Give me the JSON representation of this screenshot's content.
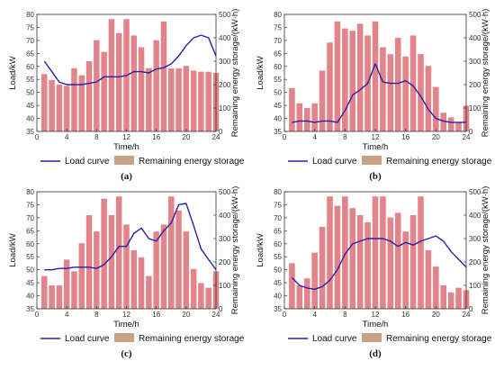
{
  "colors": {
    "bar_fill": "#e07a7f",
    "bar_fill_alt": "#c8a48c",
    "legend_bar": "#c9a185",
    "line": "#2a1fa8",
    "axis": "#333333"
  },
  "legend": {
    "line_label": "Load curve",
    "bar_label": "Remaining energy storage"
  },
  "chart_data": [
    {
      "type": "bar+line",
      "panel_label": "(a)",
      "xlabel": "Time/h",
      "ylabel": "Load/kW",
      "y2label": "Remaining energy storage/(kW·h)",
      "xlim": [
        0,
        24
      ],
      "ylim": [
        35,
        80
      ],
      "y2lim": [
        0,
        500
      ],
      "xticks": [
        "0",
        "4",
        "8",
        "12",
        "16",
        "20",
        "24"
      ],
      "yticks": [
        "35",
        "40",
        "45",
        "50",
        "55",
        "60",
        "65",
        "70",
        "75",
        "80"
      ],
      "y2ticks": [
        "0",
        "100",
        "200",
        "300",
        "400",
        "500"
      ],
      "hours": [
        1,
        2,
        3,
        4,
        5,
        6,
        7,
        8,
        9,
        10,
        11,
        12,
        13,
        14,
        15,
        16,
        17,
        18,
        19,
        20,
        21,
        22,
        23,
        24
      ],
      "bar_series": {
        "name": "Remaining energy storage",
        "values": [
          245,
          220,
          200,
          195,
          270,
          240,
          300,
          390,
          340,
          480,
          420,
          480,
          410,
          360,
          270,
          390,
          470,
          270,
          270,
          280,
          260,
          255,
          255,
          250
        ]
      },
      "line_series": {
        "name": "Load curve",
        "x": [
          1,
          2,
          3,
          4,
          5,
          6,
          7,
          8,
          9,
          10,
          11,
          12,
          13,
          14,
          15,
          16,
          17,
          18,
          19,
          20,
          21,
          22,
          23,
          24
        ],
        "values": [
          62,
          58,
          54,
          53,
          53,
          53,
          53.5,
          54,
          56,
          56,
          56,
          56.5,
          58,
          58,
          57.5,
          59,
          59.5,
          61,
          64,
          68,
          71,
          72,
          71,
          64
        ]
      }
    },
    {
      "type": "bar+line",
      "panel_label": "(b)",
      "xlabel": "Time/h",
      "ylabel": "Load/kW",
      "y2label": "Remaining energy storage/(kW·h)",
      "xlim": [
        0,
        24
      ],
      "ylim": [
        35,
        80
      ],
      "y2lim": [
        0,
        500
      ],
      "xticks": [
        "0",
        "4",
        "8",
        "12",
        "16",
        "20",
        "24"
      ],
      "yticks": [
        "35",
        "40",
        "45",
        "50",
        "55",
        "60",
        "65",
        "70",
        "75",
        "80"
      ],
      "y2ticks": [
        "0",
        "100",
        "200",
        "300",
        "400",
        "500"
      ],
      "hours": [
        1,
        2,
        3,
        4,
        5,
        6,
        7,
        8,
        9,
        10,
        11,
        12,
        13,
        14,
        15,
        16,
        17,
        18,
        19,
        20,
        21,
        22,
        23,
        24
      ],
      "bar_series": {
        "name": "Remaining energy storage",
        "values": [
          185,
          120,
          100,
          120,
          260,
          380,
          470,
          440,
          430,
          460,
          410,
          470,
          360,
          330,
          400,
          320,
          410,
          330,
          280,
          190,
          80,
          60,
          40,
          110
        ]
      },
      "line_series": {
        "name": "Load curve",
        "x": [
          1,
          2,
          3,
          4,
          5,
          6,
          7,
          8,
          9,
          10,
          11,
          12,
          13,
          14,
          15,
          16,
          17,
          18,
          19,
          20,
          21,
          22,
          23,
          24
        ],
        "values": [
          38.5,
          39,
          39,
          38.5,
          39,
          39,
          38.5,
          43,
          49,
          51,
          53.5,
          61,
          54,
          53.5,
          53.5,
          54.5,
          52.5,
          48.5,
          43.5,
          40,
          39,
          38.5,
          38.5,
          38.5
        ]
      }
    },
    {
      "type": "bar+line",
      "panel_label": "(c)",
      "xlabel": "Time/h",
      "ylabel": "Load/kW",
      "y2label": "Remaining energy storage/(kW·h)",
      "xlim": [
        0,
        24
      ],
      "ylim": [
        35,
        80
      ],
      "y2lim": [
        0,
        500
      ],
      "xticks": [
        "0",
        "4",
        "8",
        "12",
        "16",
        "20",
        "24"
      ],
      "yticks": [
        "35",
        "40",
        "45",
        "50",
        "55",
        "60",
        "65",
        "70",
        "75",
        "80"
      ],
      "y2ticks": [
        "0",
        "100",
        "200",
        "300",
        "400",
        "500"
      ],
      "hours": [
        1,
        2,
        3,
        4,
        5,
        6,
        7,
        8,
        9,
        10,
        11,
        12,
        13,
        14,
        15,
        16,
        17,
        18,
        19,
        20,
        21,
        22,
        23,
        24
      ],
      "bar_series": {
        "name": "Remaining energy storage",
        "values": [
          140,
          100,
          100,
          210,
          160,
          280,
          400,
          330,
          470,
          400,
          480,
          360,
          250,
          220,
          140,
          330,
          360,
          480,
          420,
          330,
          170,
          110,
          90,
          160
        ]
      },
      "line_series": {
        "name": "Load curve",
        "x": [
          1,
          2,
          3,
          4,
          5,
          6,
          7,
          8,
          9,
          10,
          11,
          12,
          13,
          14,
          15,
          16,
          17,
          18,
          19,
          20,
          21,
          22,
          23,
          24
        ],
        "values": [
          50,
          50,
          50.5,
          50.5,
          51,
          51,
          51,
          50.5,
          52,
          55,
          59,
          59,
          64,
          66,
          62,
          61,
          65,
          68,
          75,
          75.5,
          67,
          58,
          54,
          50
        ]
      }
    },
    {
      "type": "bar+line",
      "panel_label": "(d)",
      "xlabel": "Time/h",
      "ylabel": "Load/kW",
      "y2label": "Remaining energy storage/(kW·h)",
      "xlim": [
        0,
        24
      ],
      "ylim": [
        35,
        80
      ],
      "y2lim": [
        0,
        500
      ],
      "xticks": [
        "0",
        "4",
        "8",
        "12",
        "16",
        "20",
        "24"
      ],
      "yticks": [
        "35",
        "40",
        "45",
        "50",
        "55",
        "60",
        "65",
        "70",
        "75",
        "80"
      ],
      "y2ticks": [
        "0",
        "100",
        "200",
        "300",
        "400",
        "500"
      ],
      "hours": [
        1,
        2,
        3,
        4,
        5,
        6,
        7,
        8,
        9,
        10,
        11,
        12,
        13,
        14,
        15,
        16,
        17,
        18,
        19,
        20,
        21,
        22,
        23,
        24
      ],
      "bar_series": {
        "name": "Remaining energy storage",
        "values": [
          195,
          100,
          130,
          240,
          350,
          480,
          440,
          480,
          430,
          400,
          370,
          480,
          480,
          390,
          410,
          330,
          400,
          480,
          250,
          180,
          100,
          70,
          90,
          80
        ]
      },
      "line_series": {
        "name": "Load curve",
        "x": [
          1,
          2,
          3,
          4,
          5,
          6,
          7,
          8,
          9,
          10,
          11,
          12,
          13,
          14,
          15,
          16,
          17,
          18,
          19,
          20,
          21,
          22,
          23,
          24
        ],
        "values": [
          47,
          44,
          43,
          42.5,
          43.5,
          46,
          50,
          56,
          60,
          61,
          62,
          62,
          62,
          61,
          59,
          60.5,
          59.5,
          61,
          62,
          63,
          61,
          57,
          54,
          51
        ]
      }
    }
  ]
}
